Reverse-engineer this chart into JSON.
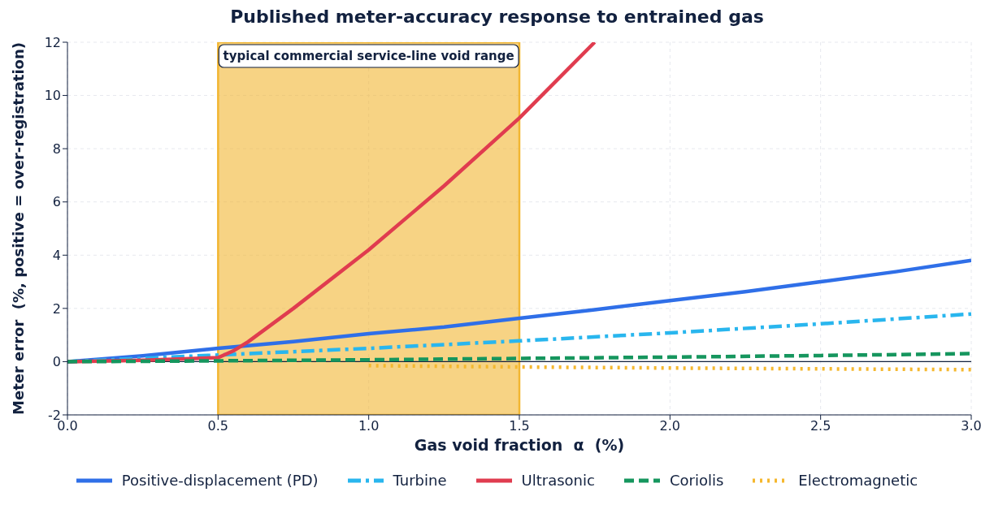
{
  "chart_data": {
    "type": "line",
    "title": "Published meter-accuracy response to entrained gas",
    "xlabel": "Gas void fraction  α  (%)",
    "ylabel": "Meter error  (%, positive = over-registration)",
    "xlim": [
      0,
      3
    ],
    "xticks": [
      {
        "value": 0,
        "label": "0.0"
      },
      {
        "value": 0.5,
        "label": "0.5"
      },
      {
        "value": 1,
        "label": "1.0"
      },
      {
        "value": 1.5,
        "label": "1.5"
      },
      {
        "value": 2,
        "label": "2.0"
      },
      {
        "value": 2.5,
        "label": "2.5"
      },
      {
        "value": 3,
        "label": "3.0"
      }
    ],
    "ylim": [
      -2,
      12
    ],
    "yticks": [
      -2,
      0,
      2,
      4,
      6,
      8,
      10,
      12
    ],
    "grid": true,
    "legend": "bottom",
    "marker": "none",
    "series": [
      {
        "name": "Positive-displacement (PD)",
        "color": "#2f6fe8",
        "line_style": "solid",
        "x": [
          0,
          0.25,
          0.5,
          0.75,
          1,
          1.25,
          1.5,
          1.75,
          2,
          2.25,
          2.5,
          2.75,
          3
        ],
        "values": [
          0,
          0.22,
          0.5,
          0.75,
          1.05,
          1.3,
          1.63,
          1.95,
          2.29,
          2.63,
          3.0,
          3.38,
          3.8
        ]
      },
      {
        "name": "Turbine",
        "color": "#29b6ee",
        "line_style": "dashdot",
        "x": [
          0,
          0.5,
          1,
          1.5,
          2,
          2.5,
          3
        ],
        "values": [
          0,
          0.25,
          0.5,
          0.78,
          1.08,
          1.42,
          1.79
        ]
      },
      {
        "name": "Ultrasonic",
        "color": "#e03c4f",
        "line_style": "solid",
        "x": [
          0,
          0.25,
          0.5,
          0.55,
          0.6,
          0.75,
          1,
          1.25,
          1.5,
          1.75
        ],
        "values": [
          0,
          0.05,
          0.15,
          0.4,
          0.75,
          2.0,
          4.2,
          6.6,
          9.15,
          12
        ]
      },
      {
        "name": "Coriolis",
        "color": "#16965e",
        "line_style": "dashed",
        "x": [
          0,
          0.5,
          1,
          1.5,
          2,
          2.5,
          3
        ],
        "values": [
          0,
          0.03,
          0.07,
          0.12,
          0.17,
          0.23,
          0.3
        ]
      },
      {
        "name": "Electromagnetic",
        "color": "#f5b82e",
        "line_style": "dotted",
        "x": [
          1,
          1.5,
          2,
          2.5,
          3
        ],
        "values": [
          -0.15,
          -0.2,
          -0.24,
          -0.27,
          -0.3
        ]
      }
    ],
    "ref_lines": [
      {
        "axis": "y",
        "value": 0,
        "color": "#12213f"
      }
    ],
    "bands": [
      {
        "axis": "x",
        "from": 0.5,
        "to": 1.5,
        "label": "typical commercial service-line void range",
        "color": "#f2b632"
      }
    ]
  }
}
